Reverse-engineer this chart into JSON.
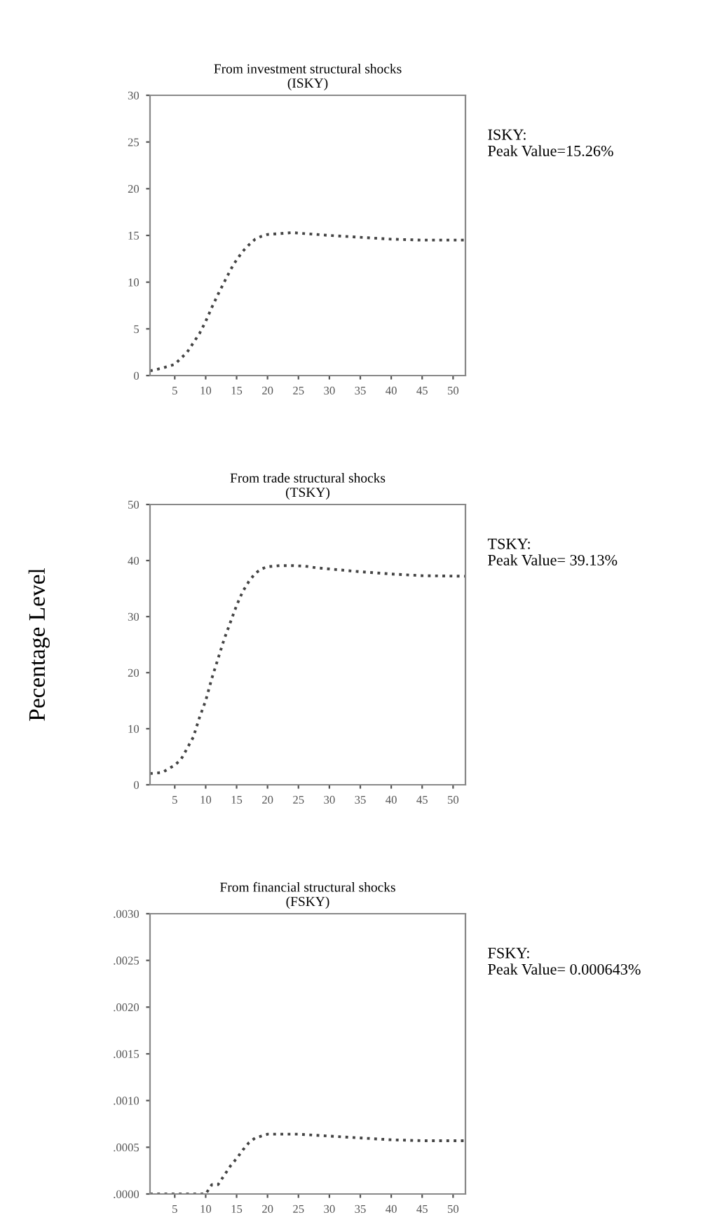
{
  "chart_data": [
    {
      "type": "line",
      "title": "From investment structural shocks\n(ISKY)",
      "x": [
        1,
        3,
        5,
        7,
        9,
        10,
        11,
        12,
        13,
        14,
        15,
        16,
        17,
        18,
        19,
        20,
        22,
        24,
        26,
        28,
        30,
        35,
        40,
        45,
        52
      ],
      "series": [
        {
          "color": "#444444",
          "values": [
            0.5,
            0.8,
            1.2,
            2.5,
            4.5,
            5.8,
            7.3,
            8.7,
            10,
            11.3,
            12.4,
            13.3,
            14,
            14.6,
            14.9,
            15.1,
            15.2,
            15.3,
            15.2,
            15.1,
            15,
            14.8,
            14.6,
            14.5,
            14.5
          ]
        }
      ],
      "xlim": [
        1,
        52
      ],
      "xticks": [
        5,
        10,
        15,
        20,
        25,
        30,
        35,
        40,
        45,
        50
      ],
      "ylim": [
        0,
        30
      ],
      "yticks": [
        0,
        5,
        10,
        15,
        20,
        25,
        30
      ],
      "line_style": "dotted",
      "grid": false,
      "annotations": [
        "ISKY:\nPeak Value=15.26%"
      ]
    },
    {
      "type": "line",
      "title": "From trade structural shocks\n(TSKY)",
      "ylabel": "Pecentage Level",
      "x": [
        1,
        3,
        5,
        6,
        7,
        8,
        9,
        10,
        11,
        12,
        13,
        14,
        15,
        16,
        17,
        18,
        19,
        20,
        22,
        24,
        26,
        28,
        30,
        35,
        40,
        45,
        52
      ],
      "series": [
        {
          "color": "#444444",
          "values": [
            2,
            2.2,
            3.5,
            4.5,
            6.5,
            8.5,
            12,
            15,
            19,
            22.5,
            26,
            29,
            32,
            34.5,
            36.3,
            37.7,
            38.5,
            38.9,
            39.1,
            39.1,
            39,
            38.7,
            38.5,
            38,
            37.6,
            37.3,
            37.2
          ]
        }
      ],
      "xlim": [
        1,
        52
      ],
      "xticks": [
        5,
        10,
        15,
        20,
        25,
        30,
        35,
        40,
        45,
        50
      ],
      "ylim": [
        0,
        50
      ],
      "yticks": [
        0,
        10,
        20,
        30,
        40,
        50
      ],
      "line_style": "dotted",
      "grid": false,
      "annotations": [
        "TSKY:\nPeak Value= 39.13%"
      ]
    },
    {
      "type": "line",
      "title": "From financial structural shocks\n(FSKY)",
      "x": [
        1,
        3,
        5,
        7,
        9,
        10,
        11,
        12,
        13,
        14,
        15,
        16,
        17,
        18,
        19,
        20,
        22,
        25,
        30,
        35,
        40,
        45,
        52
      ],
      "series": [
        {
          "color": "#444444",
          "values": [
            0,
            0,
            0,
            0,
            0,
            0,
            0.0001,
            0.0001,
            0.0002,
            0.0003,
            0.00038,
            0.00047,
            0.00055,
            0.0006,
            0.00062,
            0.00064,
            0.00064,
            0.00064,
            0.00062,
            0.0006,
            0.00058,
            0.00057,
            0.00057
          ]
        }
      ],
      "xlim": [
        1,
        52
      ],
      "xticks": [
        5,
        10,
        15,
        20,
        25,
        30,
        35,
        40,
        45,
        50
      ],
      "ylim": [
        0,
        0.003
      ],
      "yticks": [
        {
          "value": 0,
          "label": ".0000"
        },
        {
          "value": 0.0005,
          "label": ".0005"
        },
        {
          "value": 0.001,
          "label": ".0010"
        },
        {
          "value": 0.0015,
          "label": ".0015"
        },
        {
          "value": 0.002,
          "label": ".0020"
        },
        {
          "value": 0.0025,
          "label": ".0025"
        },
        {
          "value": 0.003,
          "label": ".0030"
        }
      ],
      "line_style": "dotted",
      "grid": false,
      "annotations": [
        "FSKY:\nPeak Value= 0.000643%"
      ]
    }
  ]
}
